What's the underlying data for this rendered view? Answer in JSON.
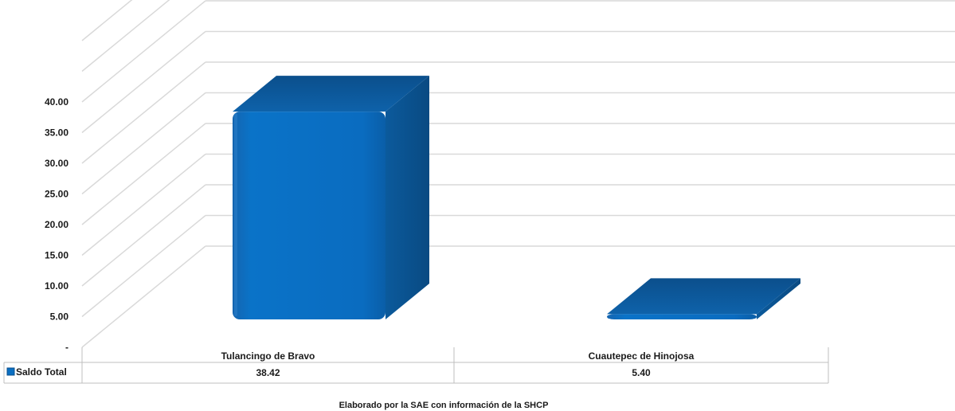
{
  "chart_data": {
    "type": "bar",
    "title": "",
    "xlabel": "",
    "ylabel": "",
    "categories": [
      "Tulancingo de Bravo",
      "Cuautepec de Hinojosa"
    ],
    "series": [
      {
        "name": "Saldo Total",
        "values": [
          38.42,
          5.4
        ],
        "value_labels": [
          "38.42",
          "5.40"
        ]
      }
    ],
    "ylim": [
      0,
      40
    ],
    "y_ticks": [
      0,
      5,
      10,
      15,
      20,
      25,
      30,
      35,
      40
    ],
    "y_tick_labels": [
      "-",
      "5.00",
      "10.00",
      "15.00",
      "20.00",
      "25.00",
      "30.00",
      "35.00",
      "40.00"
    ],
    "grid": true,
    "style": "3d-column",
    "legend_placement": "data-table-left",
    "data_table": true,
    "source_note": "Elaborado por la SAE con información de  la SHCP",
    "colors": {
      "bar_front": "#0A6FC2",
      "bar_side": "#0B4F8C",
      "bar_top": "#0D5A9E",
      "grid": "#d9d9d9",
      "table_border": "#bfbfbf"
    }
  }
}
